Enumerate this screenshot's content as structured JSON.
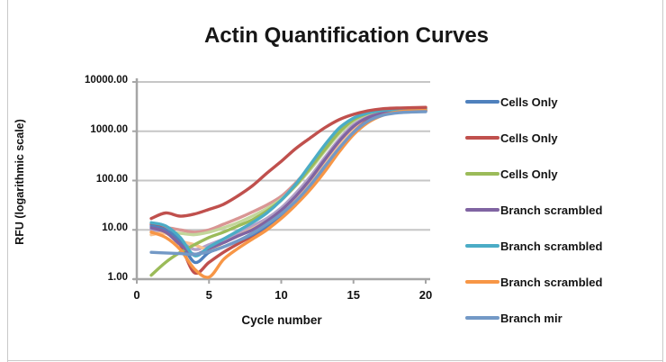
{
  "chart_data": {
    "type": "line",
    "title": "Actin Quantification Curves",
    "xlabel": "Cycle number",
    "ylabel": "RFU (logarithmic scale)",
    "y_scale": "log10",
    "xlim": [
      0,
      20
    ],
    "ylim": [
      1,
      10000
    ],
    "grid": "horizontal-gridlines-on",
    "legend_position": "right",
    "x_ticks": [
      0,
      5,
      10,
      15,
      20
    ],
    "y_ticks": [
      {
        "value": 10000,
        "label": "10000.00"
      },
      {
        "value": 1000,
        "label": "1000.00"
      },
      {
        "value": 100,
        "label": "100.00"
      },
      {
        "value": 10,
        "label": "10.00"
      },
      {
        "value": 1,
        "label": "1.00"
      }
    ],
    "x": [
      1,
      2,
      3,
      4,
      5,
      6,
      7,
      8,
      9,
      10,
      11,
      12,
      13,
      14,
      15,
      16,
      17,
      18,
      19,
      20
    ],
    "series": [
      {
        "name": "Cells Only",
        "color": "#D99694",
        "values": [
          10,
          11,
          10,
          9,
          10,
          13,
          17,
          23,
          32,
          48,
          90,
          190,
          450,
          1000,
          1750,
          2300,
          2600,
          2750,
          2800,
          2850
        ]
      },
      {
        "name": "Cells Only",
        "color": "#C3D69B",
        "values": [
          8,
          9,
          8.5,
          8,
          9,
          11,
          14,
          19,
          27,
          42,
          78,
          165,
          390,
          880,
          1600,
          2200,
          2550,
          2700,
          2750,
          2800
        ]
      },
      {
        "name": "Branch scrambled",
        "color": "#B3A2C7",
        "values": [
          10,
          9,
          6,
          4,
          5,
          6.5,
          8.5,
          12,
          17,
          28,
          55,
          120,
          290,
          680,
          1350,
          1950,
          2350,
          2550,
          2600,
          2620
        ]
      },
      {
        "name": "Branch scrambled",
        "color": "#FAC090",
        "values": [
          8,
          8.5,
          6,
          5,
          4,
          5.5,
          7.5,
          10.5,
          15,
          24,
          45,
          95,
          230,
          560,
          1150,
          1800,
          2250,
          2500,
          2580,
          2620
        ]
      },
      {
        "name": "Cells Only",
        "color": "#C0504D",
        "values": [
          13,
          10,
          5,
          1.35,
          2.2,
          3.5,
          5.2,
          7.5,
          11,
          18,
          33,
          70,
          165,
          420,
          950,
          1650,
          2150,
          2450,
          2550,
          2600
        ]
      },
      {
        "name": "Cells Only",
        "color": "#4F81BD",
        "values": [
          12,
          10,
          6,
          2.2,
          3.5,
          4.5,
          6,
          8,
          12,
          20,
          35,
          70,
          160,
          400,
          900,
          1600,
          2200,
          2500,
          2600,
          2650
        ]
      },
      {
        "name": "Cells Only",
        "color": "#9BBB59",
        "values": [
          1.2,
          2.2,
          3.5,
          5,
          7,
          9,
          12,
          16,
          24,
          40,
          80,
          180,
          420,
          950,
          1700,
          2300,
          2650,
          2800,
          2850,
          2900
        ]
      },
      {
        "name": "Branch scrambled",
        "color": "#8064A2",
        "values": [
          11,
          9,
          5,
          3.2,
          4.2,
          5.5,
          7.5,
          10,
          15,
          25,
          48,
          105,
          260,
          620,
          1250,
          1900,
          2300,
          2500,
          2550,
          2600
        ]
      },
      {
        "name": "Branch scrambled",
        "color": "#4BACC6",
        "values": [
          14,
          12,
          7,
          3,
          4.5,
          6.5,
          9.5,
          14,
          22,
          40,
          85,
          210,
          520,
          1150,
          1850,
          2350,
          2650,
          2750,
          2800,
          2820
        ]
      },
      {
        "name": "Branch scrambled",
        "color": "#F79646",
        "values": [
          9,
          7,
          4,
          1.6,
          1.1,
          2.5,
          4.2,
          6.5,
          10,
          17,
          32,
          65,
          150,
          380,
          850,
          1500,
          2100,
          2450,
          2600,
          2650
        ]
      },
      {
        "name": "Branch mir",
        "color": "#7399C6",
        "values": [
          3.5,
          3.4,
          3.3,
          3.2,
          3.6,
          4.5,
          6,
          8.5,
          13,
          21,
          38,
          80,
          190,
          450,
          950,
          1600,
          2100,
          2350,
          2450,
          2500
        ]
      },
      {
        "name": "Cells Only",
        "color": "#C0504D",
        "values": [
          17,
          22,
          19,
          21,
          26,
          33,
          49,
          78,
          141,
          245,
          445,
          730,
          1170,
          1720,
          2200,
          2600,
          2850,
          2950,
          3000,
          3050
        ]
      }
    ],
    "legend": [
      {
        "label": "Cells Only",
        "color": "#4F81BD"
      },
      {
        "label": "Cells Only",
        "color": "#C0504D"
      },
      {
        "label": "Cells Only",
        "color": "#9BBB59"
      },
      {
        "label": "Branch scrambled",
        "color": "#8064A2"
      },
      {
        "label": "Branch scrambled",
        "color": "#4BACC6"
      },
      {
        "label": "Branch scrambled",
        "color": "#F79646"
      },
      {
        "label": "Branch mir",
        "color": "#7399C6"
      }
    ],
    "colors": {
      "gridline": "#c6c6c6",
      "axis_line": "#a6a6a6",
      "title_text": "#161616",
      "tick_text": "#111111",
      "background": "#ffffff"
    }
  }
}
